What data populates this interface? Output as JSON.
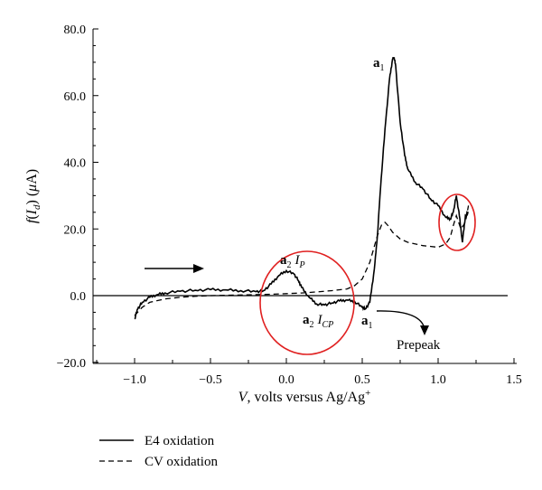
{
  "chart_data": {
    "type": "line",
    "xlabel_var": "V",
    "xlabel_text": ", volts versus Ag/Ag",
    "xlabel_sup": "+",
    "ylabel_prefix": "f",
    "ylabel_I": "I",
    "ylabel_sub": "d",
    "ylabel_mu": "μ",
    "ylabel_unit": "A",
    "xlim": [
      -1.25,
      1.5
    ],
    "ylim": [
      -20,
      80
    ],
    "x_ticks": [
      -1.0,
      -0.5,
      0.0,
      0.5,
      1.0,
      1.5
    ],
    "x_tick_labels": [
      "−1.0",
      "−0.5",
      "0.0",
      "0.5",
      "1.0",
      "1.5"
    ],
    "y_ticks": [
      -20,
      0,
      20,
      40,
      60,
      80
    ],
    "y_tick_labels": [
      "−20.0",
      "0.0",
      "20.0",
      "40.0",
      "60.0",
      "80.0"
    ],
    "zero_line": true,
    "series": [
      {
        "name": "E4 oxidation",
        "style": "solid",
        "x": [
          -1.0,
          -0.98,
          -0.95,
          -0.9,
          -0.85,
          -0.8,
          -0.7,
          -0.6,
          -0.5,
          -0.4,
          -0.3,
          -0.2,
          -0.15,
          -0.1,
          -0.05,
          0.0,
          0.05,
          0.08,
          0.1,
          0.15,
          0.2,
          0.25,
          0.3,
          0.35,
          0.4,
          0.45,
          0.5,
          0.52,
          0.55,
          0.58,
          0.6,
          0.62,
          0.65,
          0.68,
          0.7,
          0.71,
          0.72,
          0.75,
          0.78,
          0.8,
          0.85,
          0.9,
          0.95,
          1.0,
          1.05,
          1.08,
          1.1,
          1.12,
          1.14,
          1.16,
          1.18,
          1.2
        ],
        "y": [
          -7,
          -4,
          -2,
          -0.5,
          0.3,
          0.8,
          1.3,
          1.6,
          1.8,
          1.7,
          1.5,
          1.2,
          1.5,
          3.5,
          6.0,
          7.5,
          6.5,
          4.5,
          2.5,
          -0.5,
          -2.5,
          -2.8,
          -2.2,
          -1.6,
          -1.3,
          -1.8,
          -3.5,
          -4.0,
          -2.0,
          8.0,
          18.0,
          32.0,
          50.0,
          65.0,
          71.0,
          71.5,
          69.0,
          52.0,
          42.0,
          38.0,
          34.0,
          32.0,
          29.0,
          27.0,
          23.5,
          23.0,
          25.0,
          30.0,
          24.0,
          16.0,
          24.0,
          25.0
        ]
      },
      {
        "name": "CV oxidation",
        "style": "dashed",
        "x": [
          -1.0,
          -0.95,
          -0.9,
          -0.8,
          -0.7,
          -0.6,
          -0.5,
          -0.4,
          -0.3,
          -0.2,
          -0.1,
          0.0,
          0.1,
          0.2,
          0.3,
          0.4,
          0.45,
          0.5,
          0.55,
          0.6,
          0.63,
          0.65,
          0.67,
          0.7,
          0.75,
          0.8,
          0.9,
          1.0,
          1.05,
          1.08,
          1.1,
          1.12,
          1.15,
          1.18,
          1.2
        ],
        "y": [
          -6,
          -3.5,
          -2,
          -1,
          -0.5,
          -0.2,
          0.0,
          0.1,
          0.2,
          0.3,
          0.4,
          0.6,
          0.8,
          1.1,
          1.5,
          2.0,
          3.0,
          5.0,
          10.0,
          18.0,
          21.5,
          22.0,
          21.0,
          19.0,
          17.0,
          16.0,
          15.0,
          14.5,
          15.5,
          17.5,
          21.0,
          24.0,
          20.0,
          22.0,
          27.0
        ]
      }
    ],
    "annotations": {
      "a1_top_bold": "a",
      "a1_top_sub": "1",
      "a2ip_bold": "a",
      "a2ip_sub": "2",
      "a2ip_I": "I",
      "a2ip_Isub": "P",
      "a2icp_bold": "a",
      "a2icp_sub": "2",
      "a2icp_I": "I",
      "a2icp_Isub": "CP",
      "a1_low_bold": "a",
      "a1_low_sub": "1",
      "prepeak": "Prepeak"
    },
    "legend": {
      "placement": "bottom-left",
      "entries": [
        {
          "label": "E4 oxidation",
          "style": "solid"
        },
        {
          "label": "CV oxidation",
          "style": "dashed"
        }
      ]
    },
    "highlight_color": "#e02020"
  }
}
